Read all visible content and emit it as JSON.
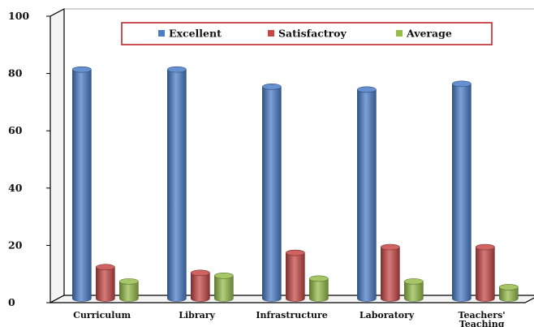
{
  "chart_data": {
    "type": "bar",
    "title": "",
    "xlabel": "",
    "ylabel": "",
    "ylim": [
      0,
      100
    ],
    "yticks": [
      "0",
      "20",
      "40",
      "60",
      "80",
      "100"
    ],
    "categories": [
      [
        "Curriculum"
      ],
      [
        "Library"
      ],
      [
        "Infrastructure"
      ],
      [
        "Laboratory"
      ],
      [
        "Teachers'",
        "Teaching"
      ]
    ],
    "series": [
      {
        "name": "Excellent",
        "color": "#4a7ec9",
        "values": [
          80,
          80,
          74,
          73,
          75
        ]
      },
      {
        "name": "Satisfactroy",
        "color": "#c64846",
        "values": [
          11,
          9,
          16,
          18,
          18
        ]
      },
      {
        "name": "Average",
        "color": "#95bd4a",
        "values": [
          6,
          8,
          7,
          6,
          4
        ]
      }
    ],
    "legend": {
      "position": "top-center",
      "border_color": "#c0262c"
    },
    "grid": false
  }
}
